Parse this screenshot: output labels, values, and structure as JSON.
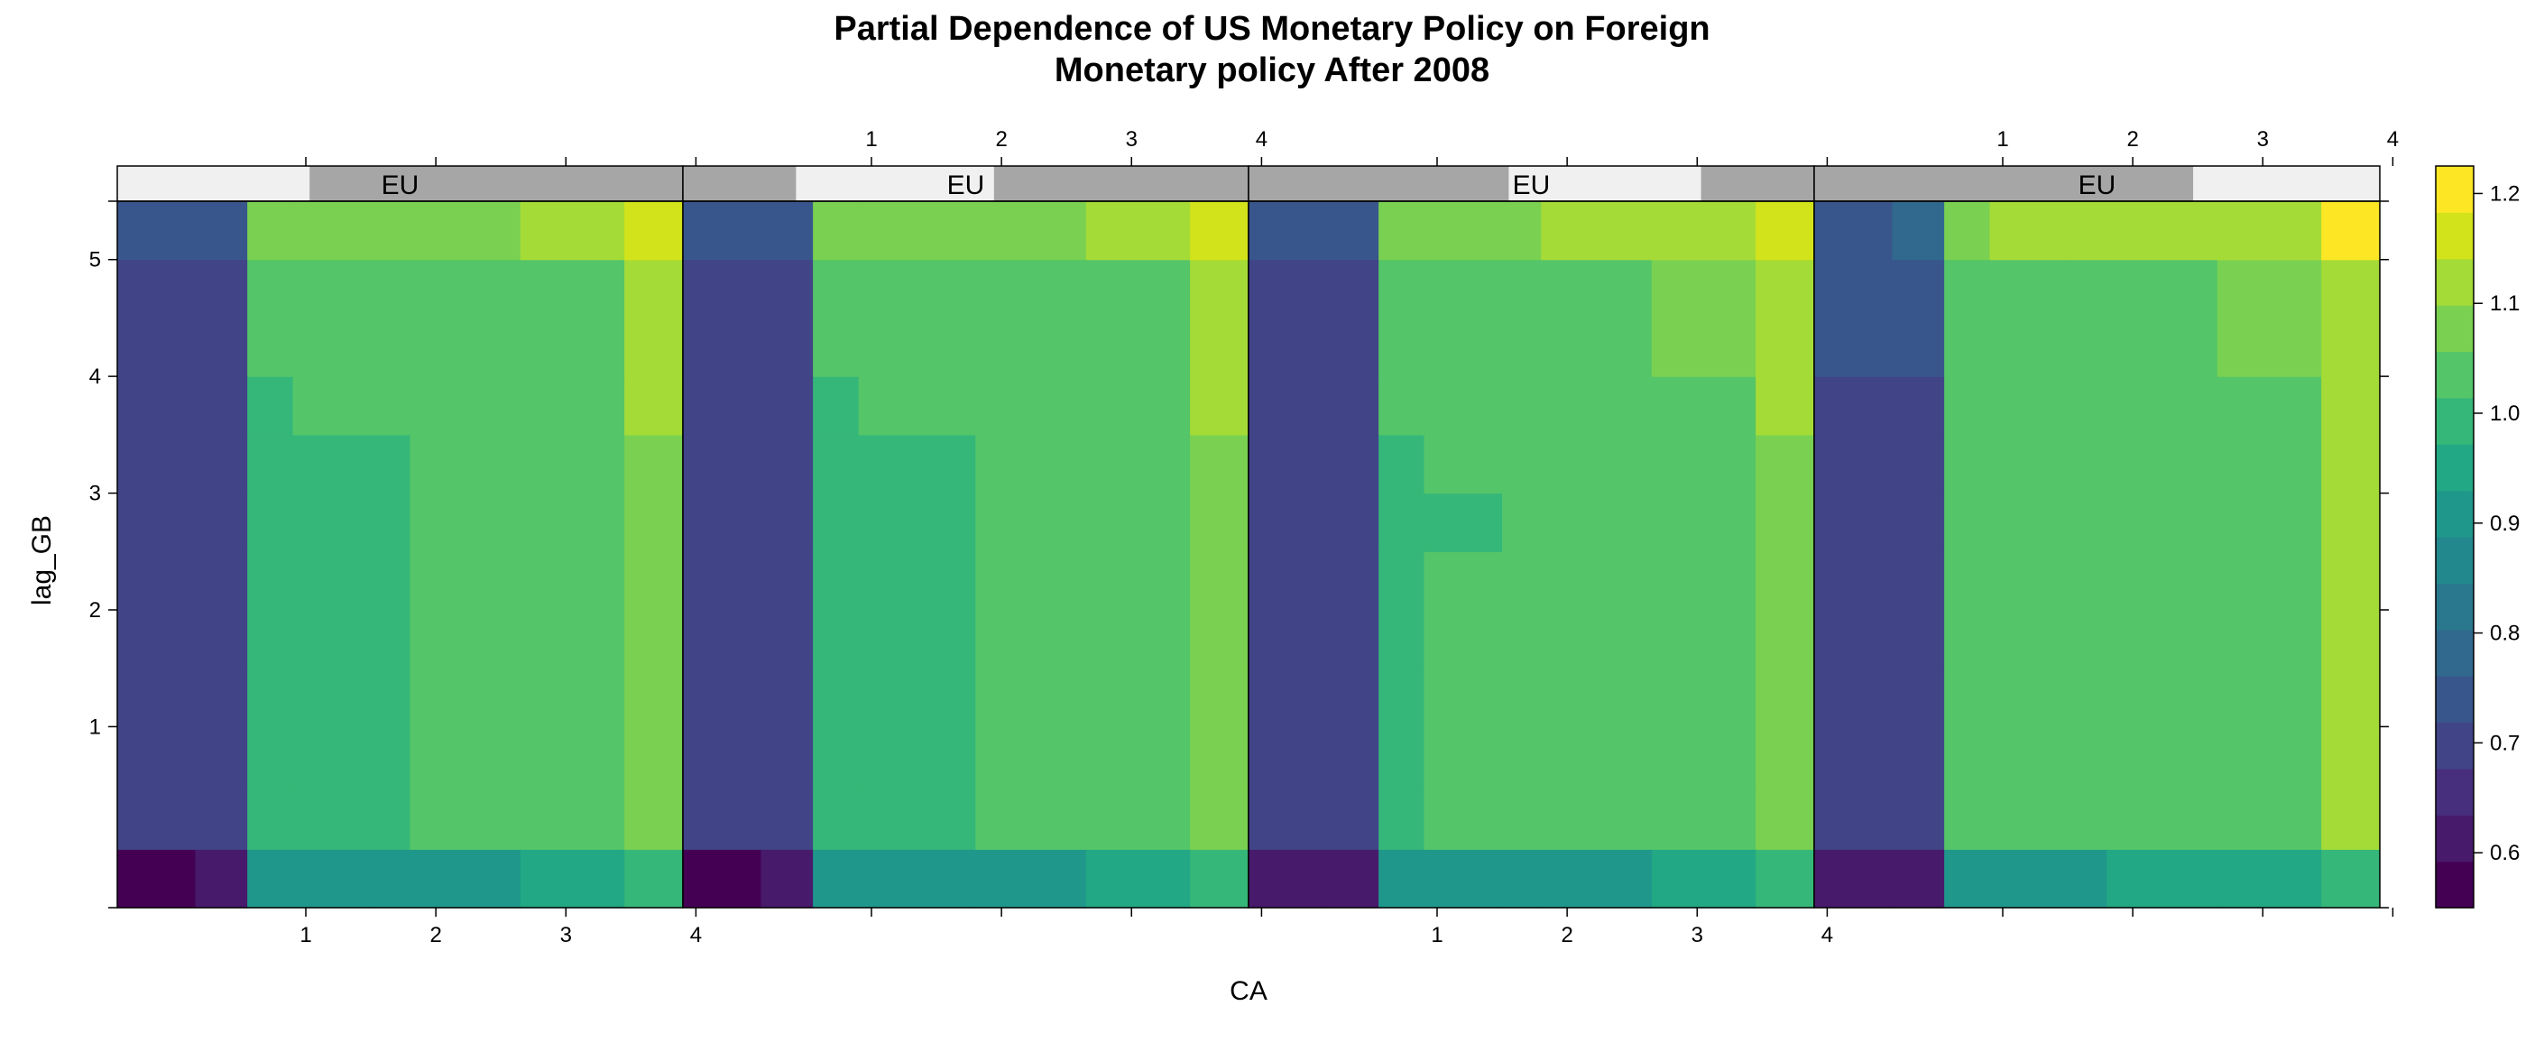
{
  "chart_data": {
    "type": "heatmap",
    "title_line1": "Partial Dependence of US Monetary Policy on Foreign",
    "title_line2": "Monetary policy After 2008",
    "xlabel": "CA",
    "ylabel": "lag_GB",
    "panel_strip_label": "EU",
    "panel_strips": [
      {
        "label": "EU",
        "level": [
          0.0,
          0.34
        ]
      },
      {
        "label": "EU",
        "level": [
          0.2,
          0.55
        ]
      },
      {
        "label": "EU",
        "level": [
          0.46,
          0.8
        ]
      },
      {
        "label": "EU",
        "level": [
          0.67,
          1.0
        ]
      }
    ],
    "x_range": [
      -0.45,
      3.9
    ],
    "y_range": [
      -0.55,
      5.5
    ],
    "x_ticks": [
      1,
      2,
      3,
      4
    ],
    "y_ticks": [
      1,
      2,
      3,
      4,
      5
    ],
    "x_tick_labels": [
      "1",
      "2",
      "3",
      "4"
    ],
    "y_tick_labels": [
      "1",
      "2",
      "3",
      "4",
      "5"
    ],
    "x_breaks": [
      -0.45,
      0.15,
      0.55,
      0.9,
      1.5,
      1.8,
      2.65,
      3.45,
      3.9
    ],
    "y_breaks": [
      -0.55,
      -0.05,
      0.5,
      1.5,
      2.5,
      3.0,
      3.5,
      4.0,
      5.0,
      5.5
    ],
    "colorbar": {
      "ticks": [
        0.6,
        0.7,
        0.8,
        0.9,
        1.0,
        1.1,
        1.2
      ],
      "tick_labels": [
        "0.6",
        "0.7",
        "0.8",
        "0.9",
        "1.0",
        "1.1",
        "1.2"
      ],
      "range": [
        0.55,
        1.225
      ],
      "colors": [
        "#440154",
        "#481a6c",
        "#472f7d",
        "#414487",
        "#39568c",
        "#31688e",
        "#2a788e",
        "#23888e",
        "#1f988b",
        "#22a884",
        "#35b779",
        "#54c568",
        "#7ad151",
        "#a5db36",
        "#d2e21b",
        "#fde725"
      ]
    },
    "panels": [
      {
        "values": [
          [
            0.58,
            0.62,
            0.9,
            0.9,
            0.9,
            0.9,
            0.93,
            0.98
          ],
          [
            0.7,
            0.7,
            0.98,
            0.98,
            0.98,
            1.02,
            1.02,
            1.06
          ],
          [
            0.7,
            0.7,
            0.98,
            0.98,
            0.98,
            1.02,
            1.02,
            1.06
          ],
          [
            0.7,
            0.7,
            0.98,
            0.98,
            0.98,
            1.02,
            1.02,
            1.06
          ],
          [
            0.7,
            0.7,
            0.98,
            0.98,
            0.98,
            1.02,
            1.02,
            1.06
          ],
          [
            0.7,
            0.7,
            0.98,
            0.98,
            0.98,
            1.02,
            1.02,
            1.06
          ],
          [
            0.7,
            0.7,
            0.98,
            1.02,
            1.02,
            1.02,
            1.02,
            1.12
          ],
          [
            0.7,
            0.7,
            1.02,
            1.02,
            1.02,
            1.02,
            1.02,
            1.12
          ],
          [
            0.74,
            0.74,
            1.06,
            1.06,
            1.06,
            1.06,
            1.1,
            1.15
          ]
        ]
      },
      {
        "values": [
          [
            0.58,
            0.62,
            0.9,
            0.9,
            0.9,
            0.9,
            0.93,
            0.98
          ],
          [
            0.7,
            0.7,
            0.98,
            0.98,
            0.98,
            1.02,
            1.02,
            1.06
          ],
          [
            0.7,
            0.7,
            0.98,
            0.98,
            0.98,
            1.02,
            1.02,
            1.06
          ],
          [
            0.7,
            0.7,
            0.98,
            0.98,
            0.98,
            1.02,
            1.02,
            1.06
          ],
          [
            0.7,
            0.7,
            0.98,
            0.98,
            0.98,
            1.02,
            1.02,
            1.06
          ],
          [
            0.7,
            0.7,
            0.98,
            0.98,
            0.98,
            1.02,
            1.02,
            1.06
          ],
          [
            0.7,
            0.7,
            0.98,
            1.02,
            1.02,
            1.02,
            1.02,
            1.12
          ],
          [
            0.7,
            0.7,
            1.02,
            1.02,
            1.02,
            1.02,
            1.02,
            1.12
          ],
          [
            0.74,
            0.74,
            1.06,
            1.06,
            1.06,
            1.06,
            1.1,
            1.15
          ]
        ]
      },
      {
        "values": [
          [
            0.62,
            0.62,
            0.9,
            0.9,
            0.9,
            0.9,
            0.93,
            0.98
          ],
          [
            0.7,
            0.7,
            0.98,
            1.02,
            1.02,
            1.02,
            1.02,
            1.06
          ],
          [
            0.7,
            0.7,
            0.98,
            1.02,
            1.02,
            1.02,
            1.02,
            1.06
          ],
          [
            0.7,
            0.7,
            0.98,
            1.02,
            1.02,
            1.02,
            1.02,
            1.06
          ],
          [
            0.7,
            0.7,
            0.98,
            0.98,
            1.02,
            1.02,
            1.02,
            1.06
          ],
          [
            0.7,
            0.7,
            0.98,
            1.02,
            1.02,
            1.02,
            1.02,
            1.06
          ],
          [
            0.7,
            0.7,
            1.02,
            1.02,
            1.02,
            1.02,
            1.02,
            1.12
          ],
          [
            0.7,
            0.7,
            1.02,
            1.02,
            1.02,
            1.02,
            1.06,
            1.12
          ],
          [
            0.74,
            0.74,
            1.06,
            1.06,
            1.06,
            1.1,
            1.1,
            1.15
          ]
        ]
      },
      {
        "values": [
          [
            0.62,
            0.62,
            0.9,
            0.9,
            0.9,
            0.93,
            0.93,
            0.98
          ],
          [
            0.7,
            0.7,
            1.02,
            1.02,
            1.02,
            1.02,
            1.02,
            1.12
          ],
          [
            0.7,
            0.7,
            1.02,
            1.02,
            1.02,
            1.02,
            1.02,
            1.12
          ],
          [
            0.7,
            0.7,
            1.02,
            1.02,
            1.02,
            1.02,
            1.02,
            1.12
          ],
          [
            0.7,
            0.7,
            1.02,
            1.02,
            1.02,
            1.02,
            1.02,
            1.12
          ],
          [
            0.7,
            0.7,
            1.02,
            1.02,
            1.02,
            1.02,
            1.02,
            1.12
          ],
          [
            0.7,
            0.7,
            1.02,
            1.02,
            1.02,
            1.02,
            1.02,
            1.12
          ],
          [
            0.76,
            0.76,
            1.02,
            1.02,
            1.02,
            1.02,
            1.06,
            1.12
          ],
          [
            0.76,
            0.8,
            1.06,
            1.1,
            1.1,
            1.1,
            1.12,
            1.2
          ]
        ]
      }
    ]
  }
}
